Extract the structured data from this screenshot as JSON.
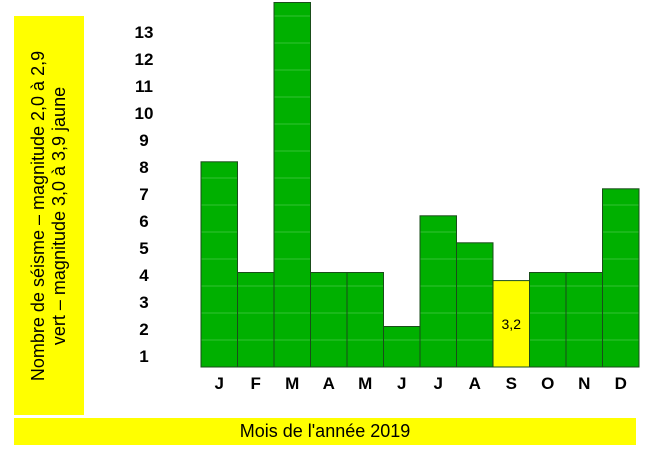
{
  "chart_data": {
    "type": "bar",
    "categories": [
      "J",
      "F",
      "M",
      "A",
      "M",
      "J",
      "J",
      "A",
      "S",
      "O",
      "N",
      "D"
    ],
    "values": [
      7.6,
      3.5,
      13.5,
      3.5,
      3.5,
      1.5,
      5.6,
      4.6,
      3.2,
      3.5,
      3.5,
      6.6
    ],
    "yticks": [
      1,
      2,
      3,
      4,
      5,
      6,
      7,
      8,
      9,
      10,
      11,
      12,
      13
    ],
    "ylim": [
      0,
      13.5
    ],
    "ylabel_lines": [
      "Nombre de séisme – magnitude 2,0 à 2,9",
      "vert  –  magnitude 3,0 à 3,9 jaune"
    ],
    "xlabel": "Mois de l'année 2019",
    "data_labels": [
      {
        "index": 8,
        "text": "3,2"
      }
    ],
    "colors": {
      "bar_green": "#00b000",
      "bar_yellow": "#ffff00",
      "label_box": "#ffff00",
      "bar_stroke": "#1a4d1a"
    },
    "grid": false
  }
}
